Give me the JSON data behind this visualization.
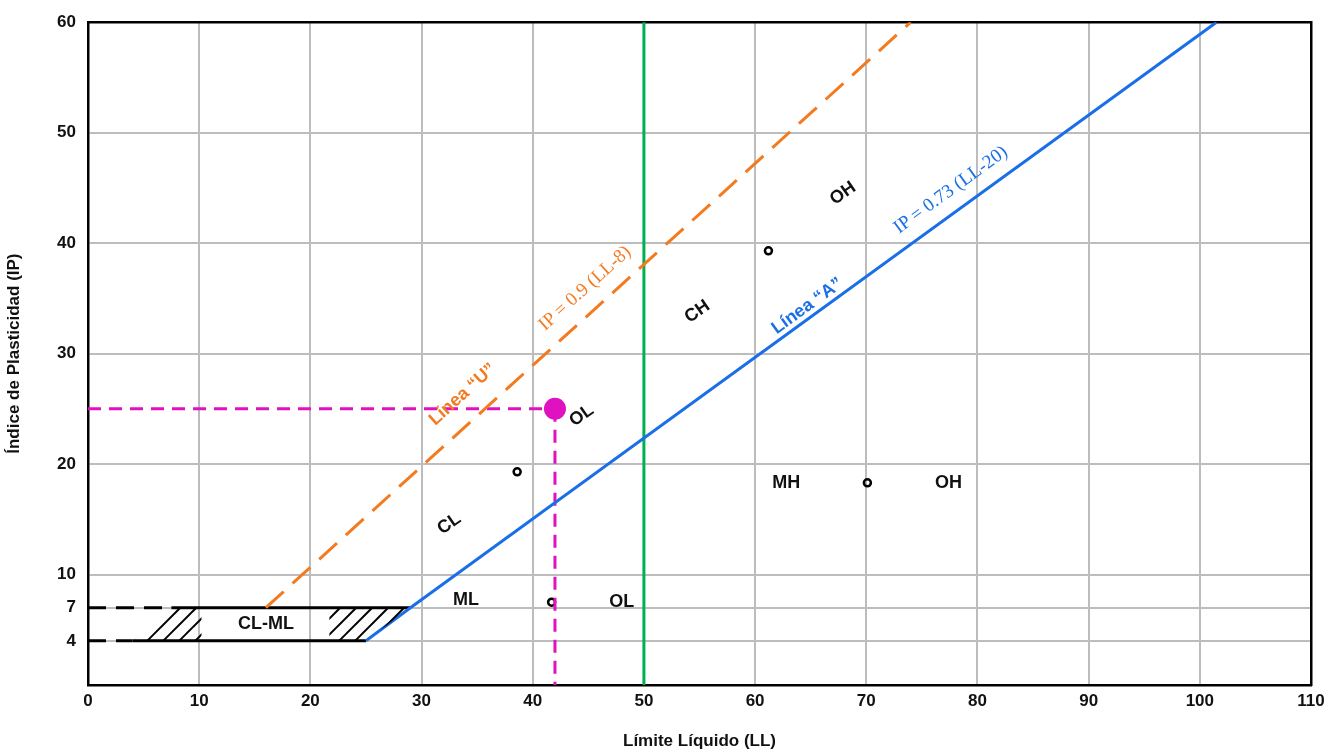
{
  "chart_data": {
    "type": "line",
    "xlabel": "Límite Líquido (LL)",
    "ylabel": "Índice de Plasticidad (IP)",
    "xlim": [
      0,
      110
    ],
    "xticks": [
      0,
      10,
      20,
      30,
      40,
      50,
      60,
      70,
      80,
      90,
      100,
      110
    ],
    "ylim": [
      0,
      60
    ],
    "yticks": [
      4,
      7,
      10,
      20,
      30,
      40,
      50,
      60
    ],
    "grid": true,
    "legend": false,
    "series": [
      {
        "color": "#1a6fe8",
        "line_style": "solid",
        "marker": "none",
        "x": [
          25,
          29,
          101.5
        ],
        "values": [
          4,
          7,
          60
        ]
      },
      {
        "color": "#f47a20",
        "line_style": "dashed",
        "marker": "none",
        "x": [
          16,
          74
        ],
        "values": [
          7,
          60
        ]
      },
      {
        "color": "#000000",
        "line_style": "dashed",
        "marker": "none",
        "x": [
          0,
          7.5
        ],
        "values": [
          7,
          7
        ]
      },
      {
        "color": "#000000",
        "line_style": "solid",
        "marker": "none",
        "x": [
          7.5,
          29
        ],
        "values": [
          7,
          7
        ]
      },
      {
        "color": "#000000",
        "line_style": "dashed",
        "marker": "none",
        "x": [
          0,
          4
        ],
        "values": [
          4,
          4
        ]
      },
      {
        "color": "#000000",
        "line_style": "solid",
        "marker": "none",
        "x": [
          4,
          25
        ],
        "values": [
          4,
          4
        ]
      },
      {
        "color": "#e011c0",
        "line_style": "dashed",
        "marker": "none",
        "x": [
          0,
          42
        ],
        "values": [
          25,
          25
        ]
      },
      {
        "color": "#e011c0",
        "line_style": "dashed",
        "marker": "none",
        "x": [
          42,
          42
        ],
        "values": [
          25,
          0
        ]
      },
      {
        "type": "scatter",
        "color": "#e011c0",
        "marker": "circle",
        "x": [
          42
        ],
        "values": [
          25
        ]
      },
      {
        "type": "scatter",
        "color": "#000000",
        "marker": "circle",
        "x": [
          38.6,
          61.2,
          70.1,
          41.7
        ],
        "values": [
          19.3,
          39.3,
          18.3,
          7.5
        ]
      }
    ],
    "ref_lines": [
      {
        "axis": "x",
        "value": 50,
        "color": "#00b050"
      }
    ],
    "annotations": [
      "CL-ML",
      "ML",
      "OL",
      "OL",
      "CL",
      "CH",
      "OH",
      "MH",
      "OH",
      "Línea “U”",
      "IP = 0.9 (LL-8)",
      "Línea “A”",
      "IP = 0.73 (LL-20)"
    ]
  }
}
